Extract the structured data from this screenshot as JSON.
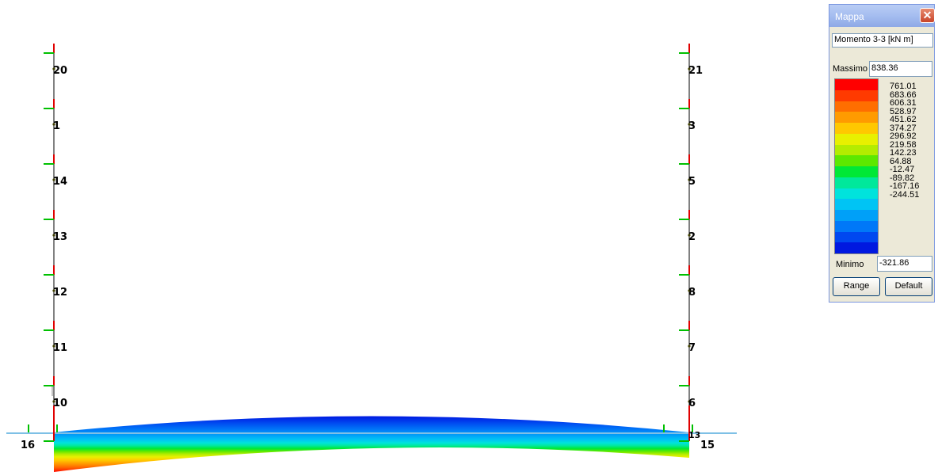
{
  "structure": {
    "left_column_nodes": [
      "20",
      "1",
      "14",
      "13",
      "12",
      "11",
      "10"
    ],
    "right_column_nodes": [
      "21",
      "3",
      "5",
      "2",
      "8",
      "7",
      "6"
    ],
    "bottom_left_node": "16",
    "bottom_right_node": "15",
    "bottom_right_extra": "13"
  },
  "palette": {
    "title": "Mappa",
    "quantity": "Momento 3-3 [kN  m]",
    "max_label": "Massimo",
    "max_value": "838.36",
    "min_label": "Minimo",
    "min_value": "-321.86",
    "levels": [
      "761.01",
      "683.66",
      "606.31",
      "528.97",
      "451.62",
      "374.27",
      "296.92",
      "219.58",
      "142.23",
      "64.88",
      "-12.47",
      "-89.82",
      "-167.16",
      "-244.51"
    ],
    "colors": [
      "#ff0000",
      "#ff3a00",
      "#ff6e00",
      "#ff9b00",
      "#ffc800",
      "#e8f000",
      "#b4ec00",
      "#5de800",
      "#00e836",
      "#00e89b",
      "#00e3dc",
      "#00c4f4",
      "#00a0f8",
      "#0078f8",
      "#0048f0",
      "#0018e0"
    ],
    "range_button": "Range",
    "default_button": "Default"
  }
}
